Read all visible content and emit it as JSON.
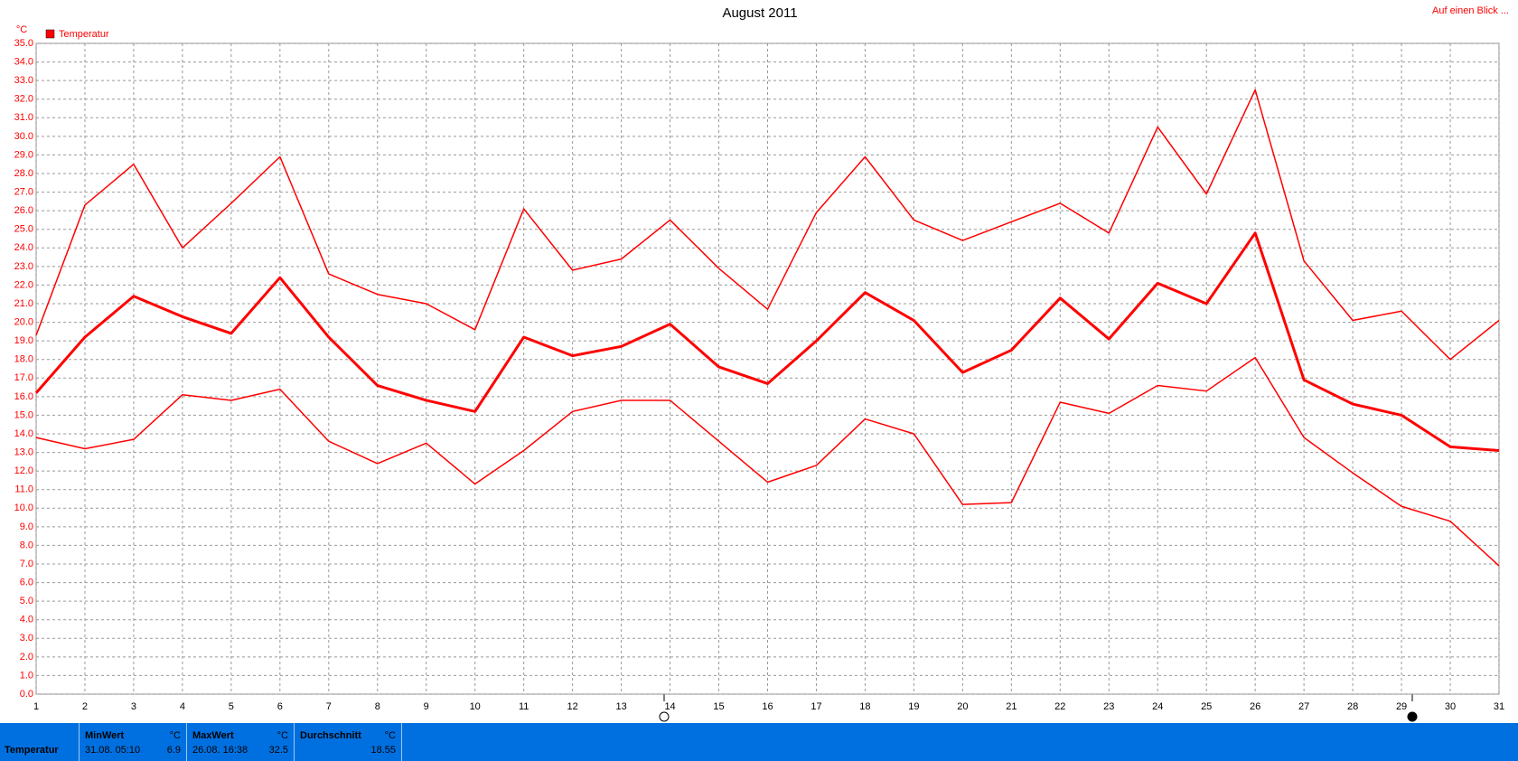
{
  "chart_data": {
    "type": "line",
    "title": "August 2011",
    "y_unit": "°C",
    "legend": "Temperatur",
    "link": "Auf einen Blick ...",
    "grid": true,
    "x": [
      1,
      2,
      3,
      4,
      5,
      6,
      7,
      8,
      9,
      10,
      11,
      12,
      13,
      14,
      15,
      16,
      17,
      18,
      19,
      20,
      21,
      22,
      23,
      24,
      25,
      26,
      27,
      28,
      29,
      30,
      31
    ],
    "xlim": [
      1,
      31
    ],
    "xticks": [
      1,
      2,
      3,
      4,
      5,
      6,
      7,
      8,
      9,
      10,
      11,
      12,
      13,
      14,
      15,
      16,
      17,
      18,
      19,
      20,
      21,
      22,
      23,
      24,
      25,
      26,
      27,
      28,
      29,
      30,
      31
    ],
    "ylim": [
      0,
      35
    ],
    "yticks": [
      {
        "value": 0,
        "label": "0.0"
      },
      {
        "value": 1,
        "label": "1.0"
      },
      {
        "value": 2,
        "label": "2.0"
      },
      {
        "value": 3,
        "label": "3.0"
      },
      {
        "value": 4,
        "label": "4.0"
      },
      {
        "value": 5,
        "label": "5.0"
      },
      {
        "value": 6,
        "label": "6.0"
      },
      {
        "value": 7,
        "label": "7.0"
      },
      {
        "value": 8,
        "label": "8.0"
      },
      {
        "value": 9,
        "label": "9.0"
      },
      {
        "value": 10,
        "label": "10.0"
      },
      {
        "value": 11,
        "label": "11.0"
      },
      {
        "value": 12,
        "label": "12.0"
      },
      {
        "value": 13,
        "label": "13.0"
      },
      {
        "value": 14,
        "label": "14.0"
      },
      {
        "value": 15,
        "label": "15.0"
      },
      {
        "value": 16,
        "label": "16.0"
      },
      {
        "value": 17,
        "label": "17.0"
      },
      {
        "value": 18,
        "label": "18.0"
      },
      {
        "value": 19,
        "label": "19.0"
      },
      {
        "value": 20,
        "label": "20.0"
      },
      {
        "value": 21,
        "label": "21.0"
      },
      {
        "value": 22,
        "label": "22.0"
      },
      {
        "value": 23,
        "label": "23.0"
      },
      {
        "value": 24,
        "label": "24.0"
      },
      {
        "value": 25,
        "label": "25.0"
      },
      {
        "value": 26,
        "label": "26.0"
      },
      {
        "value": 27,
        "label": "27.0"
      },
      {
        "value": 28,
        "label": "28.0"
      },
      {
        "value": 29,
        "label": "29.0"
      },
      {
        "value": 30,
        "label": "30.0"
      },
      {
        "value": 31,
        "label": "31.0"
      },
      {
        "value": 32,
        "label": "32.0"
      },
      {
        "value": 33,
        "label": "33.0"
      },
      {
        "value": 34,
        "label": "34.0"
      },
      {
        "value": 35,
        "label": "35.0"
      }
    ],
    "series": [
      {
        "color": "#ff0000",
        "line_width": 1.5,
        "values": [
          19.3,
          26.3,
          28.5,
          24.0,
          26.4,
          28.9,
          22.6,
          21.5,
          21.0,
          19.6,
          26.1,
          22.8,
          23.4,
          25.5,
          22.9,
          20.7,
          25.9,
          28.9,
          25.5,
          24.4,
          25.4,
          26.4,
          24.8,
          30.5,
          26.9,
          32.5,
          23.3,
          20.1,
          20.6,
          18.0,
          20.1
        ]
      },
      {
        "color": "#ff0000",
        "line_width": 3,
        "values": [
          16.2,
          19.2,
          21.4,
          20.3,
          19.4,
          22.4,
          19.2,
          16.6,
          15.8,
          15.2,
          19.2,
          18.2,
          18.7,
          19.9,
          17.6,
          16.7,
          19.0,
          21.6,
          20.1,
          17.3,
          18.5,
          21.3,
          19.1,
          22.1,
          21.0,
          24.8,
          16.9,
          15.6,
          15.0,
          13.3,
          13.1
        ]
      },
      {
        "color": "#ff0000",
        "line_width": 1.5,
        "values": [
          13.8,
          13.2,
          13.7,
          16.1,
          15.8,
          16.4,
          13.6,
          12.4,
          13.5,
          11.3,
          13.1,
          15.2,
          15.8,
          15.8,
          13.6,
          11.4,
          12.3,
          14.8,
          14.0,
          10.2,
          10.3,
          15.7,
          15.1,
          16.6,
          16.3,
          18.1,
          13.8,
          11.9,
          10.1,
          9.3,
          6.9
        ]
      }
    ]
  },
  "summary": {
    "row_label": "Temperatur",
    "cells": [
      {
        "title": "MinWert",
        "unit": "°C",
        "time": "31.08. 05:10",
        "value": 6.9
      },
      {
        "title": "MaxWert",
        "unit": "°C",
        "time": "26.08. 16:38",
        "value": 32.5
      },
      {
        "title": "Durchschnitt",
        "unit": "°C",
        "value": 18.55
      }
    ]
  }
}
